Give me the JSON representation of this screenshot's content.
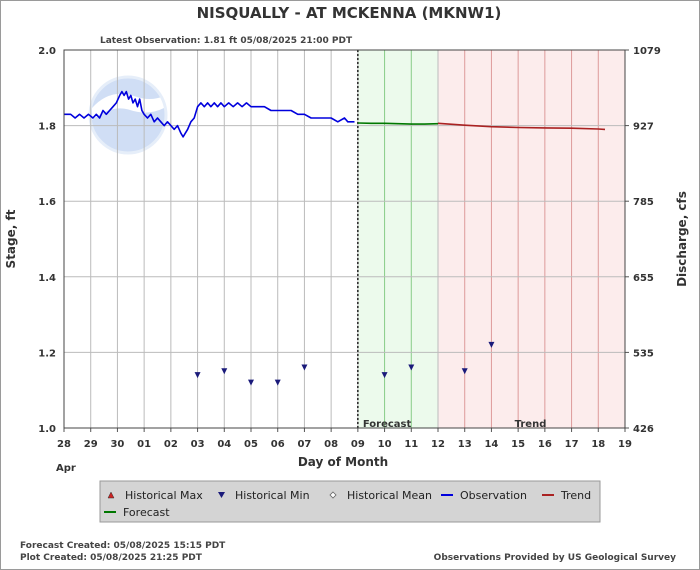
{
  "title": "NISQUALLY - AT MCKENNA  (MKNW1)",
  "latest_observation": "Latest Observation: 1.81 ft 05/08/2025 21:00 PDT",
  "colors": {
    "observation": "#0000dd",
    "forecast": "#007700",
    "trend": "#aa2222",
    "historical_min": "#1a1a7a",
    "historical_max": "#cc2222",
    "forecast_bg": "#ecfaec",
    "trend_bg": "#fcecec"
  },
  "chart_data": {
    "type": "line",
    "title": "NISQUALLY - AT MCKENNA  (MKNW1)",
    "xlabel": "Day of Month",
    "ylabel": "Stage, ft",
    "y2label": "Discharge, cfs",
    "month_label": "Apr",
    "x_ticks": [
      "28",
      "29",
      "30",
      "01",
      "02",
      "03",
      "04",
      "05",
      "06",
      "07",
      "08",
      "09",
      "10",
      "11",
      "12",
      "13",
      "14",
      "15",
      "16",
      "17",
      "18",
      "19"
    ],
    "xlim": [
      "2025-04-28",
      "2025-05-19"
    ],
    "ylim": [
      1.0,
      2.0
    ],
    "y_ticks": [
      1.0,
      1.2,
      1.4,
      1.6,
      1.8,
      2.0
    ],
    "y2_ticks": [
      {
        "stage": 1.0,
        "label": "426"
      },
      {
        "stage": 1.2,
        "label": "535"
      },
      {
        "stage": 1.4,
        "label": "655"
      },
      {
        "stage": 1.6,
        "label": "785"
      },
      {
        "stage": 1.8,
        "label": "927"
      },
      {
        "stage": 2.0,
        "label": "1079"
      }
    ],
    "grid": true,
    "forecast_region": {
      "start": "2025-05-09",
      "end": "2025-05-12",
      "label": "Forecast"
    },
    "trend_region": {
      "start": "2025-05-12",
      "end": "2025-05-19",
      "label": "Trend"
    },
    "series": [
      {
        "name": "Observation",
        "style": "line",
        "points": [
          [
            "2025-04-28 00:00",
            1.83
          ],
          [
            "2025-04-28 06:00",
            1.83
          ],
          [
            "2025-04-28 10:00",
            1.82
          ],
          [
            "2025-04-28 14:00",
            1.83
          ],
          [
            "2025-04-28 18:00",
            1.82
          ],
          [
            "2025-04-28 22:00",
            1.83
          ],
          [
            "2025-04-29 02:00",
            1.82
          ],
          [
            "2025-04-29 05:00",
            1.83
          ],
          [
            "2025-04-29 08:00",
            1.82
          ],
          [
            "2025-04-29 11:00",
            1.84
          ],
          [
            "2025-04-29 14:00",
            1.83
          ],
          [
            "2025-04-29 17:00",
            1.84
          ],
          [
            "2025-04-29 20:00",
            1.85
          ],
          [
            "2025-04-29 23:00",
            1.86
          ],
          [
            "2025-04-30 02:00",
            1.88
          ],
          [
            "2025-04-30 04:00",
            1.89
          ],
          [
            "2025-04-30 06:00",
            1.88
          ],
          [
            "2025-04-30 08:00",
            1.89
          ],
          [
            "2025-04-30 10:00",
            1.87
          ],
          [
            "2025-04-30 12:00",
            1.88
          ],
          [
            "2025-04-30 14:00",
            1.86
          ],
          [
            "2025-04-30 16:00",
            1.87
          ],
          [
            "2025-04-30 18:00",
            1.85
          ],
          [
            "2025-04-30 20:00",
            1.87
          ],
          [
            "2025-04-30 22:00",
            1.84
          ],
          [
            "2025-05-01 00:00",
            1.83
          ],
          [
            "2025-05-01 03:00",
            1.82
          ],
          [
            "2025-05-01 06:00",
            1.83
          ],
          [
            "2025-05-01 09:00",
            1.81
          ],
          [
            "2025-05-01 12:00",
            1.82
          ],
          [
            "2025-05-01 15:00",
            1.81
          ],
          [
            "2025-05-01 18:00",
            1.8
          ],
          [
            "2025-05-01 21:00",
            1.81
          ],
          [
            "2025-05-02 00:00",
            1.8
          ],
          [
            "2025-05-02 03:00",
            1.79
          ],
          [
            "2025-05-02 06:00",
            1.8
          ],
          [
            "2025-05-02 09:00",
            1.78
          ],
          [
            "2025-05-02 11:00",
            1.77
          ],
          [
            "2025-05-02 13:00",
            1.78
          ],
          [
            "2025-05-02 15:00",
            1.79
          ],
          [
            "2025-05-02 18:00",
            1.81
          ],
          [
            "2025-05-02 21:00",
            1.82
          ],
          [
            "2025-05-03 00:00",
            1.85
          ],
          [
            "2025-05-03 03:00",
            1.86
          ],
          [
            "2025-05-03 06:00",
            1.85
          ],
          [
            "2025-05-03 09:00",
            1.86
          ],
          [
            "2025-05-03 12:00",
            1.85
          ],
          [
            "2025-05-03 15:00",
            1.86
          ],
          [
            "2025-05-03 18:00",
            1.85
          ],
          [
            "2025-05-03 21:00",
            1.86
          ],
          [
            "2025-05-04 00:00",
            1.85
          ],
          [
            "2025-05-04 04:00",
            1.86
          ],
          [
            "2025-05-04 08:00",
            1.85
          ],
          [
            "2025-05-04 12:00",
            1.86
          ],
          [
            "2025-05-04 16:00",
            1.85
          ],
          [
            "2025-05-04 20:00",
            1.86
          ],
          [
            "2025-05-05 00:00",
            1.85
          ],
          [
            "2025-05-05 06:00",
            1.85
          ],
          [
            "2025-05-05 12:00",
            1.85
          ],
          [
            "2025-05-05 18:00",
            1.84
          ],
          [
            "2025-05-06 00:00",
            1.84
          ],
          [
            "2025-05-06 06:00",
            1.84
          ],
          [
            "2025-05-06 12:00",
            1.84
          ],
          [
            "2025-05-06 18:00",
            1.83
          ],
          [
            "2025-05-07 00:00",
            1.83
          ],
          [
            "2025-05-07 06:00",
            1.82
          ],
          [
            "2025-05-07 12:00",
            1.82
          ],
          [
            "2025-05-07 18:00",
            1.82
          ],
          [
            "2025-05-08 00:00",
            1.82
          ],
          [
            "2025-05-08 06:00",
            1.81
          ],
          [
            "2025-05-08 12:00",
            1.82
          ],
          [
            "2025-05-08 15:00",
            1.81
          ],
          [
            "2025-05-08 18:00",
            1.81
          ],
          [
            "2025-05-08 21:00",
            1.81
          ]
        ]
      },
      {
        "name": "Forecast",
        "style": "line",
        "points": [
          [
            "2025-05-09 00:00",
            1.807
          ],
          [
            "2025-05-09 12:00",
            1.806
          ],
          [
            "2025-05-10 00:00",
            1.806
          ],
          [
            "2025-05-10 12:00",
            1.805
          ],
          [
            "2025-05-11 00:00",
            1.804
          ],
          [
            "2025-05-11 12:00",
            1.804
          ],
          [
            "2025-05-12 00:00",
            1.805
          ]
        ]
      },
      {
        "name": "Trend",
        "style": "line",
        "points": [
          [
            "2025-05-12 00:00",
            1.806
          ],
          [
            "2025-05-13 00:00",
            1.801
          ],
          [
            "2025-05-14 00:00",
            1.797
          ],
          [
            "2025-05-15 00:00",
            1.795
          ],
          [
            "2025-05-16 00:00",
            1.794
          ],
          [
            "2025-05-17 00:00",
            1.793
          ],
          [
            "2025-05-18 00:00",
            1.791
          ],
          [
            "2025-05-18 06:00",
            1.79
          ]
        ]
      },
      {
        "name": "Historical Min",
        "style": "marker",
        "points": [
          [
            "2025-05-03 00:00",
            1.14
          ],
          [
            "2025-05-04 00:00",
            1.15
          ],
          [
            "2025-05-05 00:00",
            1.12
          ],
          [
            "2025-05-06 00:00",
            1.12
          ],
          [
            "2025-05-07 00:00",
            1.16
          ],
          [
            "2025-05-10 00:00",
            1.14
          ],
          [
            "2025-05-11 00:00",
            1.16
          ],
          [
            "2025-05-13 00:00",
            1.15
          ],
          [
            "2025-05-14 00:00",
            1.22
          ]
        ]
      }
    ],
    "legend": {
      "placement": "bottom",
      "items": [
        {
          "label": "Historical Max",
          "symbol": "triangle-up",
          "color": "#cc2222"
        },
        {
          "label": "Historical Min",
          "symbol": "triangle-down",
          "color": "#1a1a7a"
        },
        {
          "label": "Historical Mean",
          "symbol": "diamond",
          "color": "#666666"
        },
        {
          "label": "Observation",
          "symbol": "line",
          "color": "#0000dd"
        },
        {
          "label": "Trend",
          "symbol": "line",
          "color": "#aa2222"
        },
        {
          "label": "Forecast",
          "symbol": "line",
          "color": "#007700"
        }
      ]
    }
  },
  "footer": {
    "forecast_created": "Forecast Created: 05/08/2025 15:15 PDT",
    "plot_created": "Plot Created: 05/08/2025 21:25 PDT",
    "credit": "Observations Provided by US Geological Survey"
  }
}
